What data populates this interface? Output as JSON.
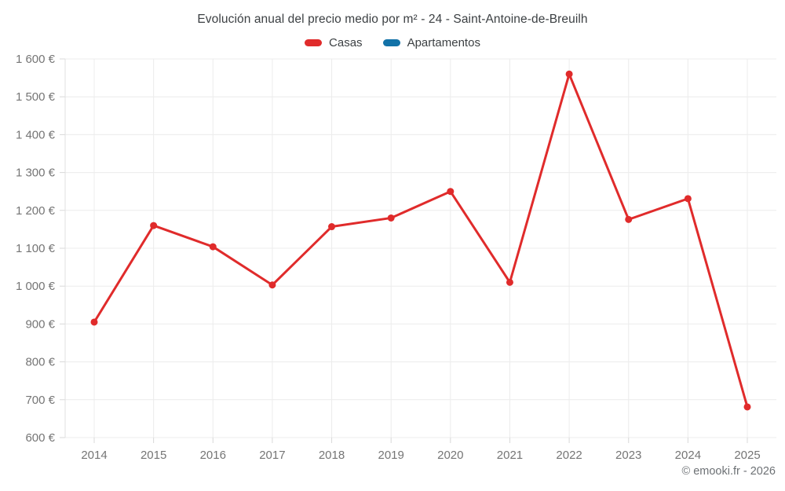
{
  "header": {
    "title": "Evolución anual del precio medio por m² - 24 - Saint-Antoine-de-Breuilh"
  },
  "legend": [
    {
      "label": "Casas",
      "color": "#e02b2b"
    },
    {
      "label": "Apartamentos",
      "color": "#1272a8"
    }
  ],
  "footer": {
    "credit": "© emooki.fr - 2026"
  },
  "colors": {
    "casas": "#e02b2b",
    "apartamentos": "#1272a8",
    "grid": "#ececec",
    "axis": "#e0e0e0",
    "tick": "#d8d8d8",
    "tick_label": "#757575",
    "title_text": "#3c4043"
  },
  "chart_data": {
    "type": "line",
    "title": "Evolución anual del precio medio por m² - 24 - Saint-Antoine-de-Breuilh",
    "categories": [
      "2014",
      "2015",
      "2016",
      "2017",
      "2018",
      "2019",
      "2020",
      "2021",
      "2022",
      "2023",
      "2024",
      "2025"
    ],
    "series": [
      {
        "name": "Casas",
        "color": "#e02b2b",
        "values": [
          905,
          1160,
          1104,
          1003,
          1157,
          1180,
          1250,
          1010,
          1560,
          1176,
          1231,
          681
        ]
      },
      {
        "name": "Apartamentos",
        "color": "#1272a8",
        "values": []
      }
    ],
    "xlabel": "",
    "ylabel": "",
    "ylim": [
      600,
      1600
    ],
    "y_tick_step": 100,
    "y_ticks": [
      {
        "value": 600,
        "label": "600 €"
      },
      {
        "value": 700,
        "label": "700 €"
      },
      {
        "value": 800,
        "label": "800 €"
      },
      {
        "value": 900,
        "label": "900 €"
      },
      {
        "value": 1000,
        "label": "1 000 €"
      },
      {
        "value": 1100,
        "label": "1 100 €"
      },
      {
        "value": 1200,
        "label": "1 200 €"
      },
      {
        "value": 1300,
        "label": "1 300 €"
      },
      {
        "value": 1400,
        "label": "1 400 €"
      },
      {
        "value": 1500,
        "label": "1 500 €"
      },
      {
        "value": 1600,
        "label": "1 600 €"
      }
    ],
    "grid": true,
    "legend_position": "top"
  }
}
